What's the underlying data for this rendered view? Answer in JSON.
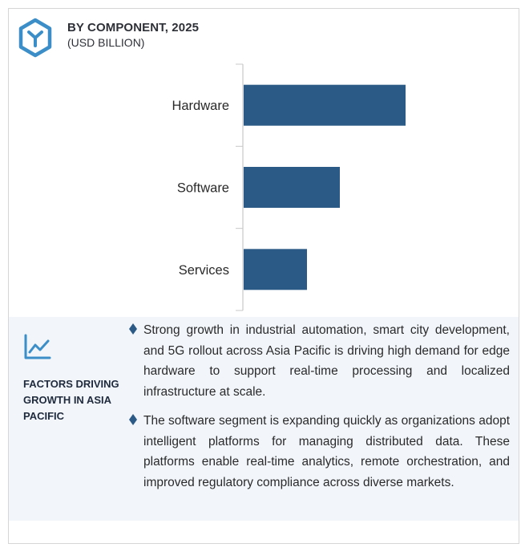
{
  "header": {
    "title": "BY COMPONENT, 2025",
    "subtitle": "(USD BILLION)",
    "logo_icon": "hexagon-y-logo-icon"
  },
  "chart_data": {
    "type": "bar",
    "orientation": "horizontal",
    "title": "BY COMPONENT, 2025",
    "subtitle": "(USD BILLION)",
    "categories": [
      "Hardware",
      "Software",
      "Services"
    ],
    "values": [
      202,
      120,
      79
    ],
    "bar_color": "#2c5a86",
    "xlabel": "",
    "ylabel": "",
    "value_axis_visible": false,
    "grid": false,
    "legend": "none"
  },
  "factors": {
    "icon": "trend-line-icon",
    "title": "FACTORS DRIVING GROWTH IN ASIA PACIFIC",
    "bullet_icon": "diamond-bullet-icon",
    "items": [
      "Strong growth in industrial automation, smart city development, and 5G rollout across Asia Pacific is driving high demand for edge hardware to support real-time processing and localized infrastructure at scale.",
      "The software segment is expanding quickly as organizations adopt intelligent platforms for managing distributed data. These platforms enable real-time analytics, remote orchestration, and improved regulatory compliance across diverse markets."
    ]
  },
  "colors": {
    "accent": "#2c5a86",
    "logo": "#3b8ec8",
    "panel_background": "#f2f6fb"
  }
}
